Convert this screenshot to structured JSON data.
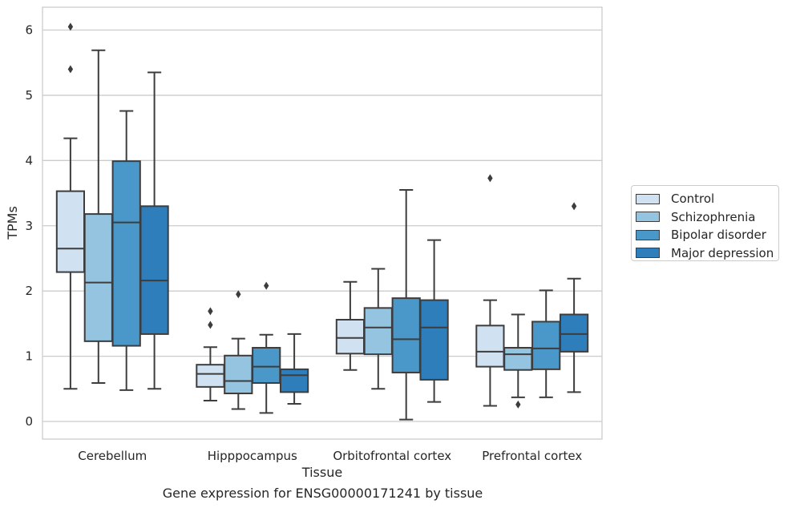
{
  "chart_data": {
    "type": "box",
    "title": "",
    "caption": "Gene expression for ENSG00000171241 by tissue",
    "xlabel": "Tissue",
    "ylabel": "TPMs",
    "ylim": [
      -0.27,
      6.35
    ],
    "yticks": [
      0,
      1,
      2,
      3,
      4,
      5,
      6
    ],
    "grid": "horizontal",
    "legend_position": "right",
    "categories": [
      "Cerebellum",
      "Hipppocampus",
      "Orbitofrontal cortex",
      "Prefrontal cortex"
    ],
    "series": [
      {
        "name": "Control",
        "color": "#d0e1f2",
        "boxes": [
          {
            "whislo": 0.5,
            "q1": 2.29,
            "med": 2.65,
            "q3": 3.53,
            "whishi": 4.34,
            "fliers": [
              5.4,
              6.05
            ]
          },
          {
            "whislo": 0.32,
            "q1": 0.53,
            "med": 0.73,
            "q3": 0.87,
            "whishi": 1.14,
            "fliers": [
              1.48,
              1.69
            ]
          },
          {
            "whislo": 0.79,
            "q1": 1.04,
            "med": 1.28,
            "q3": 1.56,
            "whishi": 2.14,
            "fliers": []
          },
          {
            "whislo": 0.24,
            "q1": 0.84,
            "med": 1.07,
            "q3": 1.47,
            "whishi": 1.86,
            "fliers": [
              3.73
            ]
          }
        ]
      },
      {
        "name": "Schizophrenia",
        "color": "#94c4df",
        "boxes": [
          {
            "whislo": 0.59,
            "q1": 1.23,
            "med": 2.13,
            "q3": 3.18,
            "whishi": 5.69,
            "fliers": []
          },
          {
            "whislo": 0.19,
            "q1": 0.43,
            "med": 0.62,
            "q3": 1.01,
            "whishi": 1.27,
            "fliers": [
              1.95
            ]
          },
          {
            "whislo": 0.5,
            "q1": 1.03,
            "med": 1.44,
            "q3": 1.74,
            "whishi": 2.34,
            "fliers": []
          },
          {
            "whislo": 0.37,
            "q1": 0.79,
            "med": 1.03,
            "q3": 1.13,
            "whishi": 1.64,
            "fliers": [
              0.26
            ]
          }
        ]
      },
      {
        "name": "Bipolar disorder",
        "color": "#4a98c9",
        "boxes": [
          {
            "whislo": 0.48,
            "q1": 1.16,
            "med": 3.05,
            "q3": 3.99,
            "whishi": 4.76,
            "fliers": []
          },
          {
            "whislo": 0.13,
            "q1": 0.59,
            "med": 0.84,
            "q3": 1.13,
            "whishi": 1.33,
            "fliers": [
              2.08
            ]
          },
          {
            "whislo": 0.03,
            "q1": 0.75,
            "med": 1.26,
            "q3": 1.89,
            "whishi": 3.55,
            "fliers": []
          },
          {
            "whislo": 0.37,
            "q1": 0.8,
            "med": 1.12,
            "q3": 1.53,
            "whishi": 2.01,
            "fliers": []
          }
        ]
      },
      {
        "name": "Major depression",
        "color": "#2e7ebc",
        "boxes": [
          {
            "whislo": 0.5,
            "q1": 1.34,
            "med": 2.16,
            "q3": 3.3,
            "whishi": 5.35,
            "fliers": []
          },
          {
            "whislo": 0.27,
            "q1": 0.45,
            "med": 0.71,
            "q3": 0.8,
            "whishi": 1.34,
            "fliers": []
          },
          {
            "whislo": 0.3,
            "q1": 0.64,
            "med": 1.44,
            "q3": 1.86,
            "whishi": 2.78,
            "fliers": []
          },
          {
            "whislo": 0.45,
            "q1": 1.07,
            "med": 1.34,
            "q3": 1.64,
            "whishi": 2.19,
            "fliers": [
              3.3
            ]
          }
        ]
      }
    ]
  }
}
